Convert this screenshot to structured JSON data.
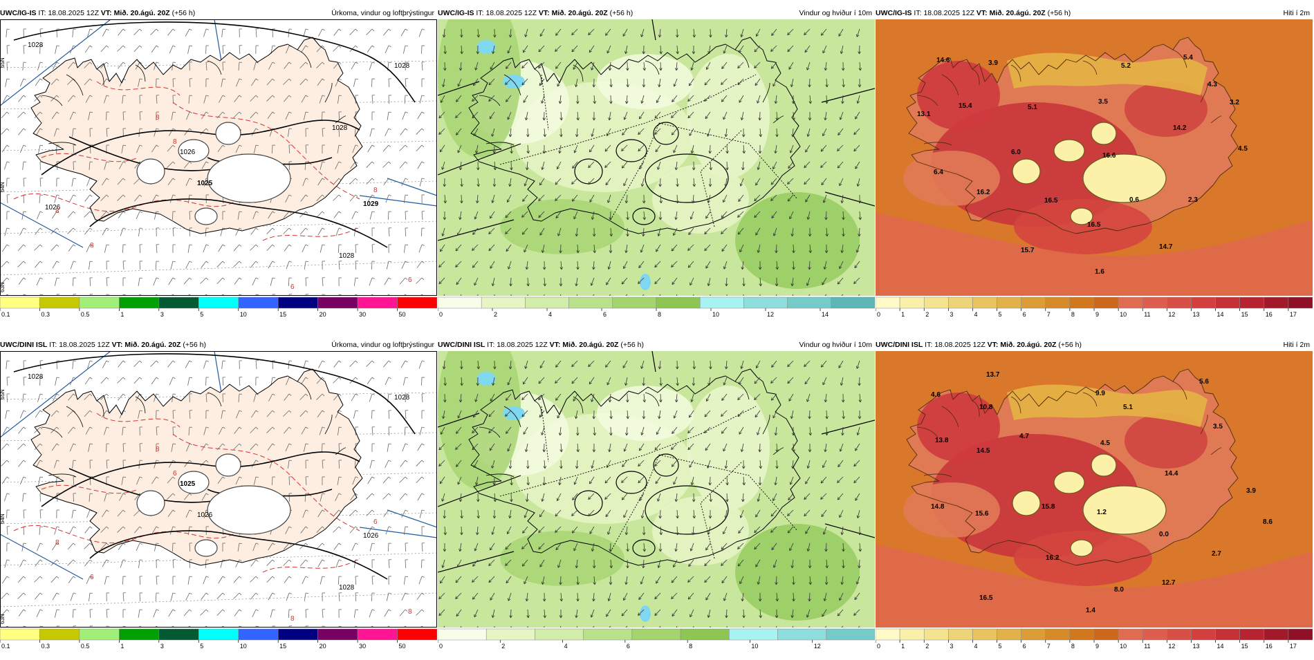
{
  "rows": [
    {
      "model": "UWC/IG-IS",
      "panels": [
        {
          "kind": "precip",
          "model": "UWC/IG-IS",
          "it_prefix": "IT:",
          "it": "18.08.2025 12Z",
          "vt_prefix": "VT:",
          "vt": "Mið. 20.ágú. 20Z",
          "lead": "(+56 h)",
          "title": "Úrkoma, vindur og loftþrýstingur",
          "pressure_labels": [
            {
              "text": "1028"
            },
            {
              "text": "1028"
            },
            {
              "text": "1026"
            },
            {
              "text": "1025"
            },
            {
              "text": "1029"
            },
            {
              "text": "1028"
            },
            {
              "text": "1026"
            },
            {
              "text": "1028"
            }
          ],
          "temp_labels": [
            "8",
            "8",
            "8",
            "8",
            "6",
            "8",
            "6"
          ]
        },
        {
          "kind": "wind",
          "model": "UWC/IG-IS",
          "it_prefix": "IT:",
          "it": "18.08.2025 12Z",
          "vt_prefix": "VT:",
          "vt": "Mið. 20.ágú. 20Z",
          "lead": "(+56 h)",
          "title": "Vindur og hviður í 10m"
        },
        {
          "kind": "temp",
          "model": "UWC/IG-IS",
          "it_prefix": "IT:",
          "it": "18.08.2025 12Z",
          "vt_prefix": "VT:",
          "vt": "Mið. 20.ágú. 20Z",
          "lead": "(+56 h)",
          "title": "Hiti í 2m",
          "station_values": [
            "14.6",
            "3.9",
            "5.2",
            "5.4",
            "4.3",
            "3.2",
            "13.1",
            "15.4",
            "5.1",
            "3.5",
            "14.2",
            "6.0",
            "16.6",
            "4.5",
            "6.4",
            "16.2",
            "16.5",
            "0.6",
            "2.3",
            "16.5",
            "15.7",
            "14.7",
            "1.6"
          ]
        }
      ]
    },
    {
      "model": "UWC/DINI ISL",
      "panels": [
        {
          "kind": "precip",
          "model": "UWC/DINI ISL",
          "it_prefix": "IT:",
          "it": "18.08.2025 12Z",
          "vt_prefix": "VT:",
          "vt": "Mið. 20.ágú. 20Z",
          "lead": "(+56 h)",
          "title": "Úrkoma, vindur og loftþrýstingur",
          "pressure_labels": [
            {
              "text": "1028"
            },
            {
              "text": "1028"
            },
            {
              "text": "1025"
            },
            {
              "text": "1026"
            },
            {
              "text": "1026"
            },
            {
              "text": "1028"
            }
          ],
          "temp_labels": [
            "8",
            "8",
            "6",
            "6",
            "8",
            "6",
            "8"
          ]
        },
        {
          "kind": "wind",
          "model": "UWC/DINI ISL",
          "it_prefix": "IT:",
          "it": "18.08.2025 12Z",
          "vt_prefix": "VT:",
          "vt": "Mið. 20.ágú. 20Z",
          "lead": "(+56 h)",
          "title": "Vindur og hviður í 10m"
        },
        {
          "kind": "temp",
          "model": "UWC/DINI ISL",
          "it_prefix": "IT:",
          "it": "18.08.2025 12Z",
          "vt_prefix": "VT:",
          "vt": "Mið. 20.ágú. 20Z",
          "lead": "(+56 h)",
          "title": "Hiti í 2m",
          "station_values": [
            "13.7",
            "4.6",
            "10.8",
            "9.9",
            "5.1",
            "5.6",
            "13.8",
            "4.7",
            "4.5",
            "3.5",
            "14.5",
            "14.4",
            "3.9",
            "14.8",
            "15.6",
            "15.8",
            "1.2",
            "8.6",
            "0.0",
            "16.2",
            "2.7",
            "8.0",
            "12.7",
            "16.5",
            "1.4"
          ]
        }
      ]
    }
  ],
  "latitude_labels": [
    "65N",
    "64N",
    "63N"
  ],
  "colorbars": {
    "precip": {
      "labels": [
        "0.1",
        "0.3",
        "0.5",
        "1",
        "3",
        "5",
        "10",
        "15",
        "20",
        "30",
        "50"
      ],
      "colors": [
        "#ffff80",
        "#c8c800",
        "#a0f078",
        "#00a000",
        "#005a32",
        "#00ffff",
        "#3264ff",
        "#000080",
        "#780064",
        "#ff1493",
        "#ff0000"
      ]
    },
    "wind_top": {
      "labels": [
        "0",
        "2",
        "4",
        "6",
        "8",
        "10",
        "12",
        "14"
      ],
      "colors": [
        "#f7fde8",
        "#e6f5c3",
        "#d2ecaa",
        "#b9e08a",
        "#a3d46e",
        "#8dc653",
        "#a9f2f2",
        "#8fdede",
        "#75caca",
        "#5cb6b6"
      ]
    },
    "wind_bottom": {
      "labels": [
        "0",
        "2",
        "4",
        "6",
        "8",
        "10",
        "12"
      ],
      "colors": [
        "#f7fde8",
        "#e6f5c3",
        "#d2ecaa",
        "#b9e08a",
        "#a3d46e",
        "#8dc653",
        "#a9f2f2",
        "#8fdede",
        "#75caca"
      ]
    },
    "temp": {
      "labels": [
        "0",
        "1",
        "2",
        "3",
        "4",
        "5",
        "6",
        "7",
        "8",
        "9",
        "10",
        "11",
        "12",
        "13",
        "14",
        "15",
        "16",
        "17"
      ],
      "colors": [
        "#fffbc8",
        "#fbf0aa",
        "#f5e38f",
        "#eed478",
        "#e8c360",
        "#e3b14a",
        "#dc9d36",
        "#d68a28",
        "#d1781f",
        "#cc671c",
        "#e06c52",
        "#dd5e4c",
        "#d84f45",
        "#d1403e",
        "#c53236",
        "#b5242f",
        "#a2192a",
        "#8e1025"
      ]
    }
  },
  "colors": {
    "precip_land": "#fdeee1",
    "wind_base": "#c9e79c",
    "temp_base": "#d9782b",
    "temp_hot": "#c9353a",
    "temp_ice": "#fbf1a8",
    "isobar": "#000000",
    "isotherm": "#d23232",
    "meridian": "#1e5aa0"
  }
}
